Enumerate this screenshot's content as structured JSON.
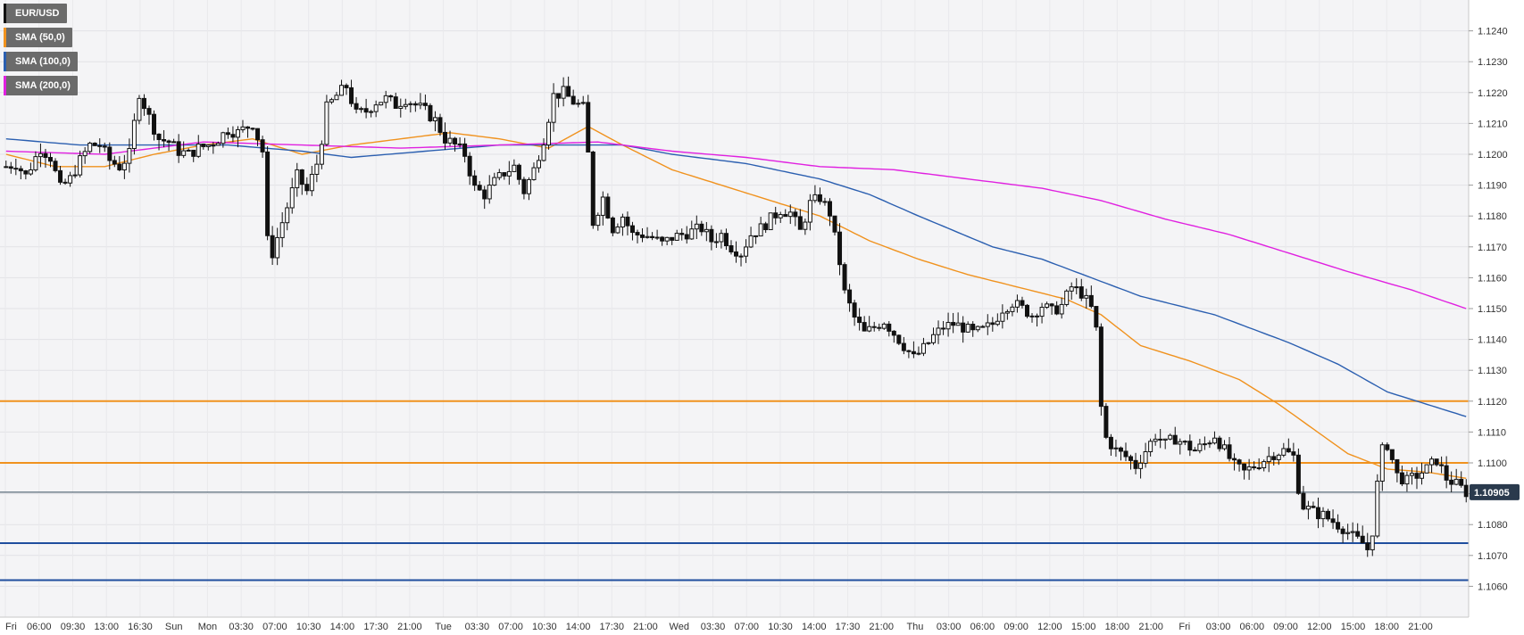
{
  "legend": [
    {
      "label": "EUR/USD",
      "color": "#111111"
    },
    {
      "label": "SMA (50,0)",
      "color": "#f0921e"
    },
    {
      "label": "SMA (100,0)",
      "color": "#2b5fb0"
    },
    {
      "label": "SMA (200,0)",
      "color": "#e020e0"
    }
  ],
  "last_price": "1.10905",
  "chart_data": {
    "type": "candlestick",
    "title": "",
    "ylim": [
      1.105,
      1.125
    ],
    "grid": true,
    "y_ticks": [
      "1.1060",
      "1.1070",
      "1.1080",
      "1.1090",
      "1.1100",
      "1.1110",
      "1.1120",
      "1.1130",
      "1.1140",
      "1.1150",
      "1.1160",
      "1.1170",
      "1.1180",
      "1.1190",
      "1.1200",
      "1.1210",
      "1.1220",
      "1.1230",
      "1.1240"
    ],
    "x_ticks": [
      "Fri",
      "06:00",
      "09:30",
      "13:00",
      "16:30",
      "Sun",
      "Mon",
      "03:30",
      "07:00",
      "10:30",
      "14:00",
      "17:30",
      "21:00",
      "Tue",
      "03:30",
      "07:00",
      "10:30",
      "14:00",
      "17:30",
      "21:00",
      "Wed",
      "03:30",
      "07:00",
      "10:30",
      "14:00",
      "17:30",
      "21:00",
      "Thu",
      "03:00",
      "06:00",
      "09:00",
      "12:00",
      "15:00",
      "18:00",
      "21:00",
      "Fri",
      "03:00",
      "06:00",
      "09:00",
      "12:00",
      "15:00",
      "18:00",
      "21:00"
    ],
    "horizontal_levels": [
      {
        "value": 1.112,
        "color": "#f0921e"
      },
      {
        "value": 1.11,
        "color": "#f0921e"
      },
      {
        "value": 1.10905,
        "color": "#5a6b7a"
      },
      {
        "value": 1.1074,
        "color": "#1f4e9e"
      },
      {
        "value": 1.1062,
        "color": "#1f4e9e"
      }
    ],
    "price_path": [
      [
        0,
        1.1196
      ],
      [
        2,
        1.1197
      ],
      [
        4,
        1.1193
      ],
      [
        7,
        1.1202
      ],
      [
        9,
        1.1199
      ],
      [
        11,
        1.1189
      ],
      [
        13,
        1.1192
      ],
      [
        15,
        1.1198
      ],
      [
        17,
        1.1203
      ],
      [
        19,
        1.1203
      ],
      [
        21,
        1.1198
      ],
      [
        23,
        1.1196
      ],
      [
        25,
        1.12
      ],
      [
        27,
        1.122
      ],
      [
        29,
        1.1212
      ],
      [
        31,
        1.1205
      ],
      [
        33,
        1.1204
      ],
      [
        35,
        1.1201
      ],
      [
        37,
        1.12
      ],
      [
        39,
        1.1202
      ],
      [
        41,
        1.1203
      ],
      [
        43,
        1.1205
      ],
      [
        45,
        1.1208
      ],
      [
        47,
        1.1207
      ],
      [
        50,
        1.121
      ],
      [
        52,
        1.1201
      ],
      [
        53,
        1.1172
      ],
      [
        54,
        1.1168
      ],
      [
        55,
        1.1173
      ],
      [
        57,
        1.1183
      ],
      [
        59,
        1.1193
      ],
      [
        61,
        1.1188
      ],
      [
        63,
        1.1197
      ],
      [
        64,
        1.1205
      ],
      [
        65,
        1.1215
      ],
      [
        67,
        1.1219
      ],
      [
        69,
        1.1222
      ],
      [
        71,
        1.1213
      ],
      [
        73,
        1.1214
      ],
      [
        75,
        1.1217
      ],
      [
        77,
        1.1218
      ],
      [
        79,
        1.1216
      ],
      [
        81,
        1.1218
      ],
      [
        83,
        1.1216
      ],
      [
        85,
        1.1214
      ],
      [
        87,
        1.1211
      ],
      [
        89,
        1.1205
      ],
      [
        91,
        1.1203
      ],
      [
        93,
        1.12
      ],
      [
        95,
        1.1189
      ],
      [
        97,
        1.1187
      ],
      [
        99,
        1.1191
      ],
      [
        101,
        1.1194
      ],
      [
        103,
        1.1196
      ],
      [
        105,
        1.1188
      ],
      [
        107,
        1.1195
      ],
      [
        109,
        1.1205
      ],
      [
        111,
        1.1219
      ],
      [
        113,
        1.122
      ],
      [
        115,
        1.1217
      ],
      [
        117,
        1.1215
      ],
      [
        118,
        1.12
      ],
      [
        119,
        1.1178
      ],
      [
        121,
        1.1186
      ],
      [
        123,
        1.1176
      ],
      [
        125,
        1.118
      ],
      [
        127,
        1.1174
      ],
      [
        129,
        1.1174
      ],
      [
        131,
        1.1173
      ],
      [
        133,
        1.1171
      ],
      [
        135,
        1.1173
      ],
      [
        137,
        1.1174
      ],
      [
        139,
        1.1175
      ],
      [
        141,
        1.1176
      ],
      [
        143,
        1.1172
      ],
      [
        145,
        1.1174
      ],
      [
        147,
        1.117
      ],
      [
        149,
        1.1168
      ],
      [
        151,
        1.1174
      ],
      [
        153,
        1.1176
      ],
      [
        155,
        1.1179
      ],
      [
        157,
        1.1182
      ],
      [
        159,
        1.1181
      ],
      [
        161,
        1.1175
      ],
      [
        163,
        1.1184
      ],
      [
        165,
        1.1186
      ],
      [
        167,
        1.1181
      ],
      [
        169,
        1.1165
      ],
      [
        170,
        1.1155
      ],
      [
        172,
        1.1147
      ],
      [
        174,
        1.1142
      ],
      [
        176,
        1.1144
      ],
      [
        178,
        1.1146
      ],
      [
        180,
        1.1142
      ],
      [
        182,
        1.1138
      ],
      [
        184,
        1.1134
      ],
      [
        186,
        1.1137
      ],
      [
        188,
        1.1141
      ],
      [
        190,
        1.1144
      ],
      [
        192,
        1.1145
      ],
      [
        194,
        1.1144
      ],
      [
        196,
        1.1142
      ],
      [
        198,
        1.1143
      ],
      [
        200,
        1.1145
      ],
      [
        202,
        1.115
      ],
      [
        204,
        1.1152
      ],
      [
        206,
        1.115
      ],
      [
        208,
        1.1148
      ],
      [
        210,
        1.1151
      ],
      [
        212,
        1.1149
      ],
      [
        214,
        1.1151
      ],
      [
        216,
        1.1157
      ],
      [
        218,
        1.1155
      ],
      [
        220,
        1.115
      ],
      [
        221,
        1.1143
      ],
      [
        222,
        1.1118
      ],
      [
        223,
        1.1108
      ],
      [
        225,
        1.1104
      ],
      [
        227,
        1.1102
      ],
      [
        229,
        1.1099
      ],
      [
        231,
        1.1104
      ],
      [
        233,
        1.1109
      ],
      [
        235,
        1.1106
      ],
      [
        237,
        1.1108
      ],
      [
        239,
        1.1106
      ],
      [
        241,
        1.1104
      ],
      [
        243,
        1.1106
      ],
      [
        245,
        1.1109
      ],
      [
        247,
        1.1104
      ],
      [
        249,
        1.1099
      ],
      [
        251,
        1.1097
      ],
      [
        253,
        1.1099
      ],
      [
        255,
        1.1101
      ],
      [
        257,
        1.1103
      ],
      [
        259,
        1.1104
      ],
      [
        261,
        1.1102
      ],
      [
        262,
        1.1092
      ],
      [
        263,
        1.1086
      ],
      [
        265,
        1.1084
      ],
      [
        267,
        1.1083
      ],
      [
        269,
        1.1081
      ],
      [
        271,
        1.1079
      ],
      [
        273,
        1.1076
      ],
      [
        275,
        1.1074
      ],
      [
        276,
        1.1072
      ],
      [
        277,
        1.1078
      ],
      [
        278,
        1.1093
      ],
      [
        279,
        1.1104
      ],
      [
        280,
        1.1106
      ],
      [
        282,
        1.1096
      ],
      [
        284,
        1.1094
      ],
      [
        286,
        1.1096
      ],
      [
        288,
        1.1098
      ],
      [
        290,
        1.1101
      ],
      [
        292,
        1.1095
      ],
      [
        294,
        1.1093
      ],
      [
        296,
        1.10905
      ]
    ],
    "series": [
      {
        "name": "SMA (50,0)",
        "color": "#f0921e",
        "points": [
          [
            0,
            1.12
          ],
          [
            10,
            1.1196
          ],
          [
            20,
            1.1196
          ],
          [
            30,
            1.12
          ],
          [
            40,
            1.1203
          ],
          [
            50,
            1.1205
          ],
          [
            60,
            1.12
          ],
          [
            70,
            1.1203
          ],
          [
            80,
            1.1205
          ],
          [
            90,
            1.1207
          ],
          [
            100,
            1.1205
          ],
          [
            110,
            1.1202
          ],
          [
            118,
            1.1209
          ],
          [
            125,
            1.1203
          ],
          [
            135,
            1.1195
          ],
          [
            145,
            1.119
          ],
          [
            155,
            1.1185
          ],
          [
            165,
            1.118
          ],
          [
            175,
            1.1172
          ],
          [
            185,
            1.1166
          ],
          [
            195,
            1.1161
          ],
          [
            205,
            1.1157
          ],
          [
            215,
            1.1153
          ],
          [
            222,
            1.1148
          ],
          [
            230,
            1.1138
          ],
          [
            240,
            1.1133
          ],
          [
            250,
            1.1127
          ],
          [
            258,
            1.1119
          ],
          [
            265,
            1.1111
          ],
          [
            272,
            1.1103
          ],
          [
            280,
            1.1098
          ],
          [
            288,
            1.1097
          ],
          [
            296,
            1.1095
          ]
        ]
      },
      {
        "name": "SMA (100,0)",
        "color": "#2b5fb0",
        "points": [
          [
            0,
            1.1205
          ],
          [
            15,
            1.1203
          ],
          [
            30,
            1.1203
          ],
          [
            45,
            1.1203
          ],
          [
            60,
            1.1201
          ],
          [
            70,
            1.1199
          ],
          [
            85,
            1.1201
          ],
          [
            100,
            1.1203
          ],
          [
            115,
            1.1203
          ],
          [
            125,
            1.1203
          ],
          [
            135,
            1.12
          ],
          [
            150,
            1.1197
          ],
          [
            165,
            1.1192
          ],
          [
            175,
            1.1187
          ],
          [
            185,
            1.118
          ],
          [
            200,
            1.117
          ],
          [
            210,
            1.1166
          ],
          [
            220,
            1.116
          ],
          [
            230,
            1.1154
          ],
          [
            245,
            1.1148
          ],
          [
            260,
            1.1139
          ],
          [
            270,
            1.1132
          ],
          [
            280,
            1.1123
          ],
          [
            290,
            1.1118
          ],
          [
            296,
            1.1115
          ]
        ]
      },
      {
        "name": "SMA (200,0)",
        "color": "#e020e0",
        "points": [
          [
            0,
            1.1201
          ],
          [
            20,
            1.12
          ],
          [
            40,
            1.1204
          ],
          [
            60,
            1.1203
          ],
          [
            80,
            1.1202
          ],
          [
            100,
            1.1203
          ],
          [
            120,
            1.1204
          ],
          [
            135,
            1.1201
          ],
          [
            150,
            1.1199
          ],
          [
            165,
            1.1196
          ],
          [
            180,
            1.1195
          ],
          [
            195,
            1.1192
          ],
          [
            210,
            1.1189
          ],
          [
            222,
            1.1185
          ],
          [
            235,
            1.1179
          ],
          [
            248,
            1.1174
          ],
          [
            260,
            1.1168
          ],
          [
            272,
            1.1162
          ],
          [
            285,
            1.1156
          ],
          [
            296,
            1.115
          ]
        ]
      }
    ]
  }
}
